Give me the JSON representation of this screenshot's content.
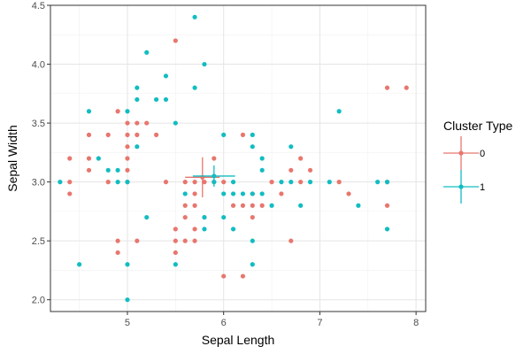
{
  "chart_data": {
    "type": "scatter",
    "xlabel": "Sepal Length",
    "ylabel": "Sepal Width",
    "xlim": [
      4.2,
      8.1
    ],
    "ylim": [
      1.9,
      4.5
    ],
    "x_ticks": [
      5,
      6,
      7,
      8
    ],
    "y_ticks": [
      2.0,
      2.5,
      3.0,
      3.5,
      4.0,
      4.5
    ],
    "x_tick_labels": [
      "5",
      "6",
      "7",
      "8"
    ],
    "y_tick_labels": [
      "2.0",
      "2.5",
      "3.0",
      "3.5",
      "4.0",
      "4.5"
    ],
    "grid": true,
    "legend_position": "right",
    "legend_title": "Cluster Type",
    "colors": {
      "0": "#e8766d",
      "1": "#11bdc2"
    },
    "series": [
      {
        "name": "0",
        "points": [
          [
            4.4,
            3.2
          ],
          [
            4.4,
            3.0
          ],
          [
            4.4,
            2.9
          ],
          [
            4.6,
            3.4
          ],
          [
            4.6,
            3.2
          ],
          [
            4.6,
            3.1
          ],
          [
            4.8,
            3.4
          ],
          [
            4.8,
            3.0
          ],
          [
            4.9,
            3.6
          ],
          [
            4.9,
            2.5
          ],
          [
            4.9,
            2.4
          ],
          [
            5.0,
            3.5
          ],
          [
            5.0,
            3.4
          ],
          [
            5.0,
            3.3
          ],
          [
            5.0,
            3.2
          ],
          [
            5.0,
            3.1
          ],
          [
            5.0,
            3.0
          ],
          [
            5.1,
            3.5
          ],
          [
            5.1,
            3.4
          ],
          [
            5.1,
            2.5
          ],
          [
            5.2,
            3.5
          ],
          [
            5.3,
            3.4
          ],
          [
            5.4,
            3.0
          ],
          [
            5.5,
            4.2
          ],
          [
            5.5,
            2.6
          ],
          [
            5.5,
            2.5
          ],
          [
            5.5,
            2.4
          ],
          [
            5.6,
            3.0
          ],
          [
            5.6,
            2.8
          ],
          [
            5.6,
            2.7
          ],
          [
            5.6,
            2.5
          ],
          [
            5.7,
            3.0
          ],
          [
            5.7,
            2.9
          ],
          [
            5.7,
            2.8
          ],
          [
            5.7,
            2.6
          ],
          [
            5.7,
            2.5
          ],
          [
            5.8,
            3.0
          ],
          [
            5.8,
            2.7
          ],
          [
            5.9,
            3.2
          ],
          [
            5.9,
            3.0
          ],
          [
            6.0,
            3.0
          ],
          [
            6.0,
            2.2
          ],
          [
            6.1,
            2.8
          ],
          [
            6.2,
            3.4
          ],
          [
            6.2,
            2.8
          ],
          [
            6.2,
            2.2
          ],
          [
            6.3,
            2.9
          ],
          [
            6.3,
            2.8
          ],
          [
            6.3,
            2.7
          ],
          [
            6.4,
            2.8
          ],
          [
            6.5,
            3.0
          ],
          [
            6.6,
            2.9
          ],
          [
            6.7,
            3.1
          ],
          [
            6.7,
            2.5
          ],
          [
            6.8,
            3.2
          ],
          [
            6.8,
            3.0
          ],
          [
            6.9,
            3.1
          ],
          [
            7.2,
            3.0
          ],
          [
            7.3,
            2.9
          ],
          [
            7.7,
            3.8
          ],
          [
            7.7,
            3.0
          ],
          [
            7.7,
            2.8
          ],
          [
            7.9,
            3.8
          ]
        ],
        "center": {
          "x": 5.78,
          "y": 3.04,
          "x_err": 0.18,
          "y_err": 0.17
        }
      },
      {
        "name": "1",
        "points": [
          [
            4.3,
            3.0
          ],
          [
            4.5,
            2.3
          ],
          [
            4.6,
            3.6
          ],
          [
            4.7,
            3.2
          ],
          [
            4.8,
            3.1
          ],
          [
            4.9,
            3.1
          ],
          [
            4.9,
            3.0
          ],
          [
            5.0,
            3.6
          ],
          [
            5.0,
            3.0
          ],
          [
            5.0,
            2.3
          ],
          [
            5.0,
            2.0
          ],
          [
            5.1,
            3.8
          ],
          [
            5.1,
            3.7
          ],
          [
            5.1,
            3.3
          ],
          [
            5.2,
            4.1
          ],
          [
            5.2,
            2.7
          ],
          [
            5.3,
            3.7
          ],
          [
            5.4,
            3.9
          ],
          [
            5.4,
            3.7
          ],
          [
            5.5,
            3.5
          ],
          [
            5.5,
            2.3
          ],
          [
            5.6,
            2.9
          ],
          [
            5.7,
            4.4
          ],
          [
            5.7,
            3.8
          ],
          [
            5.8,
            4.0
          ],
          [
            5.8,
            2.7
          ],
          [
            5.8,
            2.6
          ],
          [
            5.9,
            3.0
          ],
          [
            6.0,
            3.4
          ],
          [
            6.0,
            2.9
          ],
          [
            6.0,
            2.7
          ],
          [
            6.1,
            3.0
          ],
          [
            6.1,
            2.9
          ],
          [
            6.1,
            2.6
          ],
          [
            6.2,
            2.9
          ],
          [
            6.3,
            3.4
          ],
          [
            6.3,
            3.3
          ],
          [
            6.3,
            2.9
          ],
          [
            6.3,
            2.5
          ],
          [
            6.3,
            2.3
          ],
          [
            6.4,
            3.2
          ],
          [
            6.4,
            3.1
          ],
          [
            6.4,
            2.9
          ],
          [
            6.5,
            2.8
          ],
          [
            6.6,
            3.0
          ],
          [
            6.7,
            3.3
          ],
          [
            6.7,
            3.0
          ],
          [
            6.8,
            2.8
          ],
          [
            6.9,
            3.0
          ],
          [
            7.1,
            3.0
          ],
          [
            7.2,
            3.6
          ],
          [
            7.4,
            2.8
          ],
          [
            7.6,
            3.0
          ],
          [
            7.7,
            3.0
          ],
          [
            7.7,
            2.6
          ]
        ],
        "center": {
          "x": 5.9,
          "y": 3.05,
          "x_err": 0.22,
          "y_err": 0.09
        }
      }
    ]
  }
}
